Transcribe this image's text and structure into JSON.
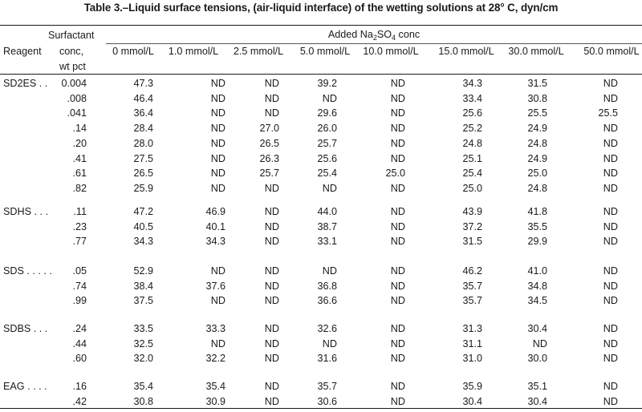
{
  "title": "Table 3.–Liquid surface tensions, (air-liquid interface) of the wetting solutions at 28° C, dyn/cm",
  "header": {
    "reagent": "Reagent",
    "surfactant": [
      "Surfactant",
      "conc,",
      "wt pct"
    ],
    "added_prefix": "Added Na",
    "added_sub1": "2",
    "added_mid": "SO",
    "added_sub2": "4",
    "added_suffix": " conc",
    "columns": [
      "0 mmol/L",
      "1.0 mmol/L",
      "2.5 mmol/L",
      "5.0 mmol/L",
      "10.0 mmol/L",
      "15.0 mmol/L",
      "30.0 mmol/L",
      "50.0 mmol/L"
    ]
  },
  "groups": [
    {
      "reagent": "SD2ES . .",
      "rows": [
        [
          "0.004",
          "47.3",
          "ND",
          "ND",
          "39.2",
          "ND",
          "34.3",
          "31.5",
          "ND"
        ],
        [
          ".008",
          "46.4",
          "ND",
          "ND",
          "ND",
          "ND",
          "33.4",
          "30.8",
          "ND"
        ],
        [
          ".041",
          "36.4",
          "ND",
          "ND",
          "29.6",
          "ND",
          "25.6",
          "25.5",
          "25.5"
        ],
        [
          ".14",
          "28.4",
          "ND",
          "27.0",
          "26.0",
          "ND",
          "25.2",
          "24.9",
          "ND"
        ],
        [
          ".20",
          "28.0",
          "ND",
          "26.5",
          "25.7",
          "ND",
          "24.8",
          "24.8",
          "ND"
        ],
        [
          ".41",
          "27.5",
          "ND",
          "26.3",
          "25.6",
          "ND",
          "25.1",
          "24.9",
          "ND"
        ],
        [
          ".61",
          "26.5",
          "ND",
          "25.7",
          "25.4",
          "25.0",
          "25.4",
          "25.0",
          "ND"
        ],
        [
          ".82",
          "25.9",
          "ND",
          "ND",
          "ND",
          "ND",
          "25.0",
          "24.8",
          "ND"
        ]
      ]
    },
    {
      "reagent": "SDHS . . .",
      "rows": [
        [
          ".11",
          "47.2",
          "46.9",
          "ND",
          "44.0",
          "ND",
          "43.9",
          "41.8",
          "ND"
        ],
        [
          ".23",
          "40.5",
          "40.1",
          "ND",
          "38.7",
          "ND",
          "37.2",
          "35.5",
          "ND"
        ],
        [
          ".77",
          "34.3",
          "34.3",
          "ND",
          "33.1",
          "ND",
          "31.5",
          "29.9",
          "ND"
        ]
      ]
    },
    {
      "reagent": "SDS . . . . .",
      "rows": [
        [
          ".05",
          "52.9",
          "ND",
          "ND",
          "ND",
          "ND",
          "46.2",
          "41.0",
          "ND"
        ],
        [
          ".74",
          "38.4",
          "37.6",
          "ND",
          "36.8",
          "ND",
          "35.7",
          "34.8",
          "ND"
        ],
        [
          ".99",
          "37.5",
          "ND",
          "ND",
          "36.6",
          "ND",
          "35.7",
          "34.5",
          "ND"
        ]
      ]
    },
    {
      "reagent": "SDBS . . .",
      "rows": [
        [
          ".24",
          "33.5",
          "33.3",
          "ND",
          "32.6",
          "ND",
          "31.3",
          "30.4",
          "ND"
        ],
        [
          ".44",
          "32.5",
          "ND",
          "ND",
          "ND",
          "ND",
          "31.1",
          "ND",
          "ND"
        ],
        [
          ".60",
          "32.0",
          "32.2",
          "ND",
          "31.6",
          "ND",
          "31.0",
          "30.0",
          "ND"
        ]
      ]
    },
    {
      "reagent": "EAG . . . .",
      "rows": [
        [
          ".16",
          "35.4",
          "35.4",
          "ND",
          "35.7",
          "ND",
          "35.9",
          "35.1",
          "ND"
        ],
        [
          ".42",
          "30.8",
          "30.9",
          "ND",
          "30.6",
          "ND",
          "30.4",
          "30.4",
          "ND"
        ]
      ]
    }
  ]
}
